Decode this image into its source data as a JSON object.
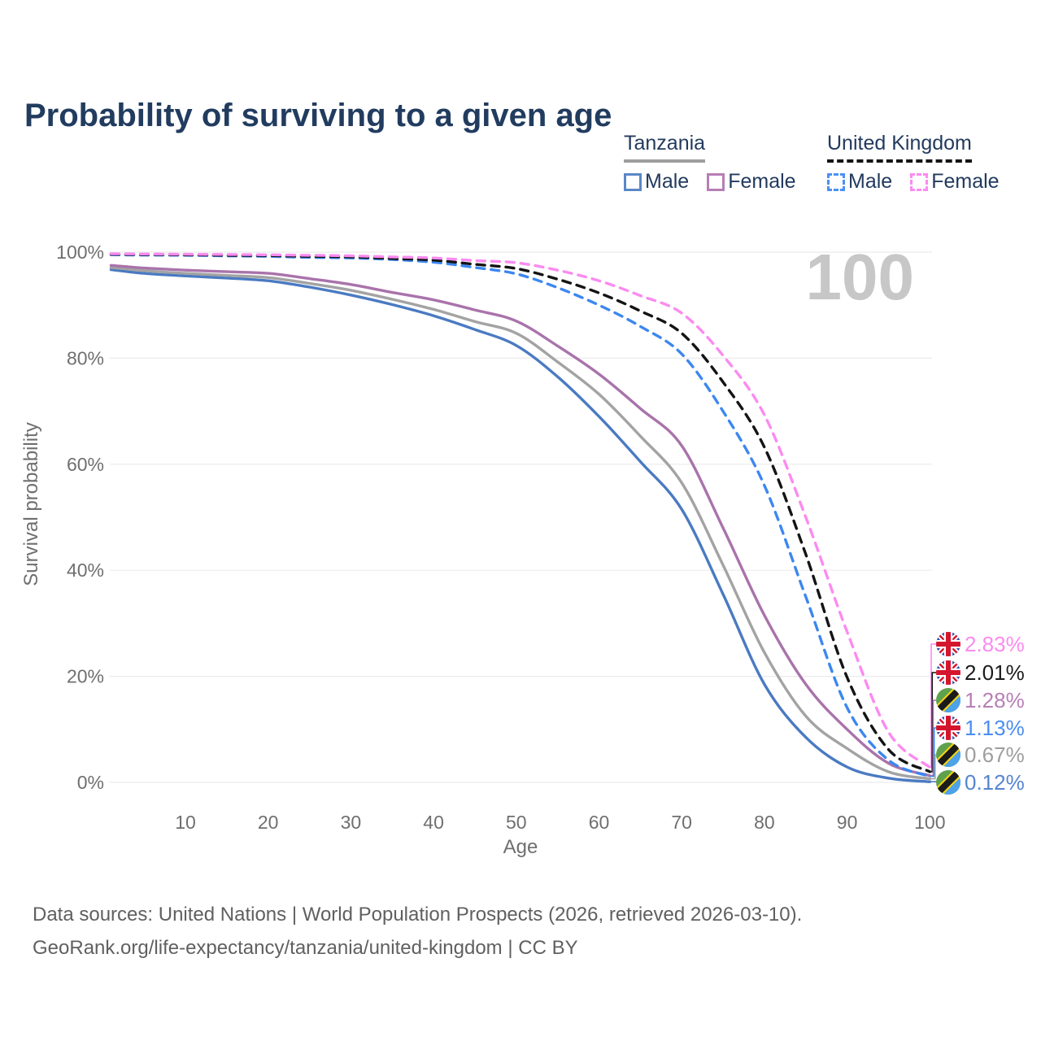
{
  "title": "Probability of surviving to a given age",
  "watermark": "100",
  "legend": {
    "groups": [
      {
        "country": "Tanzania",
        "underline": {
          "style": "solid",
          "color": "#9e9e9e"
        },
        "items": [
          {
            "label": "Male",
            "color": "#5b87c5",
            "dashed": false
          },
          {
            "label": "Female",
            "color": "#b57fb4",
            "dashed": false
          }
        ]
      },
      {
        "country": "United Kingdom",
        "underline": {
          "style": "dashed",
          "color": "#141414"
        },
        "items": [
          {
            "label": "Male",
            "color": "#4b90f5",
            "dashed": true
          },
          {
            "label": "Female",
            "color": "#fb8bf0",
            "dashed": true
          }
        ]
      }
    ]
  },
  "chart_data": {
    "type": "line",
    "title": "Probability of surviving to a given age",
    "xlabel": "Age",
    "ylabel": "Survival probability",
    "xlim": [
      0,
      100
    ],
    "ylim": [
      0,
      100
    ],
    "xticks": [
      10,
      20,
      30,
      40,
      50,
      60,
      70,
      80,
      90,
      100
    ],
    "yticks": [
      0,
      20,
      40,
      60,
      80,
      100
    ],
    "ytick_format": "percent",
    "grid": "horizontal",
    "legend_position": "top-right",
    "annotation": "100",
    "x": [
      1,
      5,
      10,
      15,
      20,
      25,
      30,
      35,
      40,
      45,
      50,
      55,
      60,
      65,
      70,
      75,
      80,
      85,
      90,
      95,
      100
    ],
    "series": [
      {
        "name": "Tanzania Male",
        "country": "Tanzania",
        "sex": "Male",
        "color": "#4a7ac2",
        "dashed": false,
        "values": [
          96.7,
          96.0,
          95.5,
          95.1,
          94.6,
          93.4,
          91.9,
          90.1,
          88.0,
          85.4,
          82.4,
          76.5,
          69.0,
          60.5,
          51.5,
          35.5,
          18.5,
          8.5,
          2.9,
          0.8,
          0.12
        ],
        "end_label": "0.12%",
        "end_value": 0.12
      },
      {
        "name": "Tanzania Both sexes",
        "country": "Tanzania",
        "sex": "Both",
        "color": "#a3a3a3",
        "dashed": false,
        "values": [
          97.1,
          96.5,
          96.0,
          95.6,
          95.2,
          94.1,
          92.8,
          91.1,
          89.2,
          86.9,
          84.7,
          79.3,
          73.2,
          65.3,
          56.5,
          41.0,
          24.5,
          12.5,
          6.4,
          2.0,
          0.67
        ],
        "end_label": "0.67%",
        "end_value": 0.67
      },
      {
        "name": "Tanzania Female",
        "country": "Tanzania",
        "sex": "Female",
        "color": "#a973ab",
        "dashed": false,
        "values": [
          97.5,
          97.0,
          96.6,
          96.3,
          96.0,
          95.0,
          93.9,
          92.4,
          91.0,
          89.1,
          87.0,
          82.3,
          77.0,
          70.5,
          63.5,
          48.0,
          31.5,
          18.5,
          10.0,
          3.6,
          1.28
        ],
        "end_label": "1.28%",
        "end_value": 1.28
      },
      {
        "name": "United Kingdom Male",
        "country": "United Kingdom",
        "sex": "Male",
        "color": "#3c87f0",
        "dashed": true,
        "values": [
          99.5,
          99.45,
          99.4,
          99.3,
          99.2,
          99.0,
          98.9,
          98.6,
          98.1,
          97.1,
          95.9,
          93.3,
          90.0,
          86.0,
          80.8,
          70.0,
          56.0,
          35.0,
          14.1,
          4.2,
          1.13
        ],
        "end_label": "1.13%",
        "end_value": 1.13
      },
      {
        "name": "United Kingdom Both sexes",
        "country": "United Kingdom",
        "sex": "Both",
        "color": "#141414",
        "dashed": true,
        "values": [
          99.6,
          99.55,
          99.5,
          99.4,
          99.35,
          99.2,
          99.1,
          98.8,
          98.5,
          97.7,
          96.9,
          94.9,
          92.3,
          88.9,
          84.7,
          75.5,
          63.2,
          43.0,
          19.8,
          6.2,
          2.01
        ],
        "end_label": "2.01%",
        "end_value": 2.01
      },
      {
        "name": "United Kingdom Female",
        "country": "United Kingdom",
        "sex": "Female",
        "color": "#fb8bf0",
        "dashed": true,
        "values": [
          99.7,
          99.65,
          99.6,
          99.55,
          99.5,
          99.4,
          99.3,
          99.1,
          98.9,
          98.4,
          98.0,
          96.6,
          94.6,
          91.8,
          88.5,
          80.5,
          69.3,
          50.0,
          28.4,
          9.5,
          2.83
        ],
        "end_label": "2.83%",
        "end_value": 2.83
      }
    ]
  },
  "end_labels": [
    {
      "flag": "uk",
      "series_index": 5,
      "value": "2.83%",
      "text_color": "#fb8bf0"
    },
    {
      "flag": "uk",
      "series_index": 4,
      "value": "2.01%",
      "text_color": "#1c1c1c"
    },
    {
      "flag": "tz",
      "series_index": 2,
      "value": "1.28%",
      "text_color": "#b77fb5"
    },
    {
      "flag": "uk",
      "series_index": 3,
      "value": "1.13%",
      "text_color": "#4a8df0"
    },
    {
      "flag": "tz",
      "series_index": 1,
      "value": "0.67%",
      "text_color": "#9e9e9e"
    },
    {
      "flag": "tz",
      "series_index": 0,
      "value": "0.12%",
      "text_color": "#5585d0"
    }
  ],
  "footer": {
    "line1": "Data sources: United Nations | World Population Prospects (2026, retrieved 2026-03-10).",
    "line2": "GeoRank.org/life-expectancy/tanzania/united-kingdom | CC BY"
  }
}
